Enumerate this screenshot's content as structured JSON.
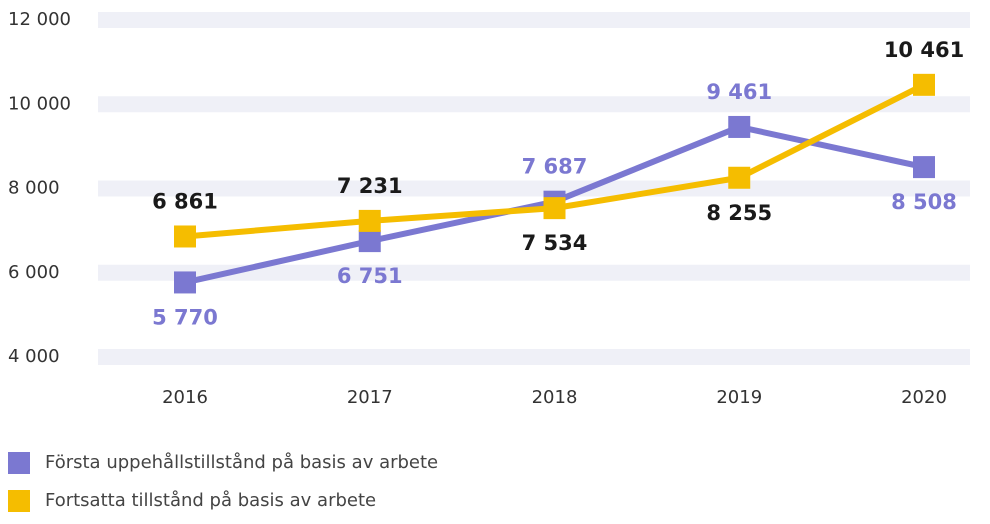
{
  "chart_data": {
    "type": "line",
    "categories": [
      "2016",
      "2017",
      "2018",
      "2019",
      "2020"
    ],
    "series": [
      {
        "name": "Första uppehållstillstånd på basis av arbete",
        "color": "#7b78d1",
        "label_color": "#7b78d1",
        "values": [
          5770,
          6751,
          7687,
          9461,
          8508
        ],
        "value_labels": [
          "5 770",
          "6 751",
          "7 687",
          "9 461",
          "8 508"
        ]
      },
      {
        "name": "Fortsatta tillstånd på basis av arbete",
        "color": "#f5bd00",
        "label_color": "#1a1a1a",
        "values": [
          6861,
          7231,
          7534,
          8255,
          10461
        ],
        "value_labels": [
          "6 861",
          "7 231",
          "7 534",
          "8 255",
          "10 461"
        ]
      }
    ],
    "ylim": [
      4000,
      12000
    ],
    "yticks": [
      {
        "value": 4000,
        "label": "4 000"
      },
      {
        "value": 6000,
        "label": "6 000"
      },
      {
        "value": 8000,
        "label": "8 000"
      },
      {
        "value": 10000,
        "label": "10 000"
      },
      {
        "value": 12000,
        "label": "12 000"
      }
    ],
    "grid": true
  }
}
